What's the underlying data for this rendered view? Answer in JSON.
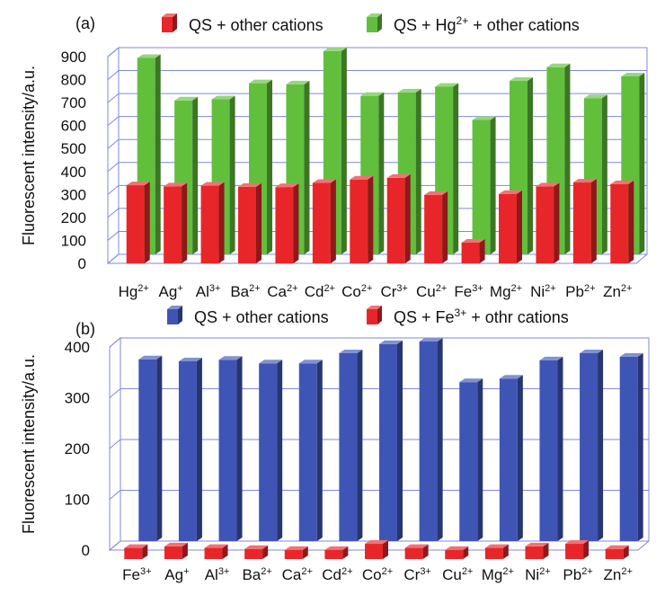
{
  "chart_data": [
    {
      "panel_label": "(a)",
      "type": "bar",
      "style": "3d-clustered-depth",
      "ylabel": "Fluorescent intensity/a.u.",
      "ylim": [
        0,
        900
      ],
      "yticks": [
        "0",
        "100",
        "200",
        "300",
        "400",
        "500",
        "600",
        "700",
        "800",
        "900"
      ],
      "grid": true,
      "legend_position": "top",
      "categories": [
        {
          "base": "Hg",
          "sup": "2+"
        },
        {
          "base": "Ag",
          "sup": "+"
        },
        {
          "base": "Al",
          "sup": "3+"
        },
        {
          "base": "Ba",
          "sup": "2+"
        },
        {
          "base": "Ca",
          "sup": "2+"
        },
        {
          "base": "Cd",
          "sup": "2+"
        },
        {
          "base": "Co",
          "sup": "2+"
        },
        {
          "base": "Cr",
          "sup": "3+"
        },
        {
          "base": "Cu",
          "sup": "2+"
        },
        {
          "base": "Fe",
          "sup": "3+"
        },
        {
          "base": "Mg",
          "sup": "2+"
        },
        {
          "base": "Ni",
          "sup": "2+"
        },
        {
          "base": "Pb",
          "sup": "2+"
        },
        {
          "base": "Zn",
          "sup": "2+"
        }
      ],
      "series": [
        {
          "name": "QS + other cations",
          "legend_parts": [
            {
              "text": "QS + other cations"
            }
          ],
          "color": "#e8262a",
          "values": [
            340,
            335,
            338,
            333,
            332,
            350,
            365,
            372,
            298,
            90,
            302,
            335,
            352,
            345
          ]
        },
        {
          "name": "QS + Hg2+ + other cations",
          "legend_parts": [
            {
              "text": "QS + Hg"
            },
            {
              "text": "2+",
              "sup": true
            },
            {
              "text": " + other cations"
            }
          ],
          "color": "#61bf3c",
          "values": [
            855,
            670,
            675,
            745,
            740,
            885,
            690,
            705,
            730,
            585,
            755,
            815,
            680,
            775
          ]
        }
      ]
    },
    {
      "panel_label": "(b)",
      "type": "bar",
      "style": "3d-clustered-depth",
      "ylabel": "Fluorescent intensity/a.u.",
      "ylim": [
        0,
        400
      ],
      "yticks": [
        "0",
        "100",
        "200",
        "300",
        "400"
      ],
      "grid": true,
      "legend_position": "top",
      "categories": [
        {
          "base": "Fe",
          "sup": "3+"
        },
        {
          "base": "Ag",
          "sup": "+"
        },
        {
          "base": "Al",
          "sup": "3+"
        },
        {
          "base": "Ba",
          "sup": "2+"
        },
        {
          "base": "Ca",
          "sup": "2+"
        },
        {
          "base": "Cd",
          "sup": "2+"
        },
        {
          "base": "Co",
          "sup": "2+"
        },
        {
          "base": "Cr",
          "sup": "3+"
        },
        {
          "base": "Cu",
          "sup": "2+"
        },
        {
          "base": "Mg",
          "sup": "2+"
        },
        {
          "base": "Ni",
          "sup": "2+"
        },
        {
          "base": "Pb",
          "sup": "2+"
        },
        {
          "base": "Zn",
          "sup": "2+"
        }
      ],
      "series": [
        {
          "name": "QS + other cations",
          "legend_parts": [
            {
              "text": "QS + other cations"
            }
          ],
          "color": "#3f55b5",
          "values": [
            358,
            354,
            357,
            350,
            350,
            370,
            388,
            393,
            313,
            320,
            356,
            370,
            363
          ]
        },
        {
          "name": "QS + Fe3+ + othr cations",
          "legend_parts": [
            {
              "text": "QS + Fe"
            },
            {
              "text": "3+",
              "sup": true
            },
            {
              "text": " + othr cations"
            }
          ],
          "color": "#e8262a",
          "values": [
            22,
            25,
            22,
            20,
            18,
            18,
            30,
            22,
            18,
            22,
            25,
            30,
            20
          ]
        }
      ]
    }
  ]
}
